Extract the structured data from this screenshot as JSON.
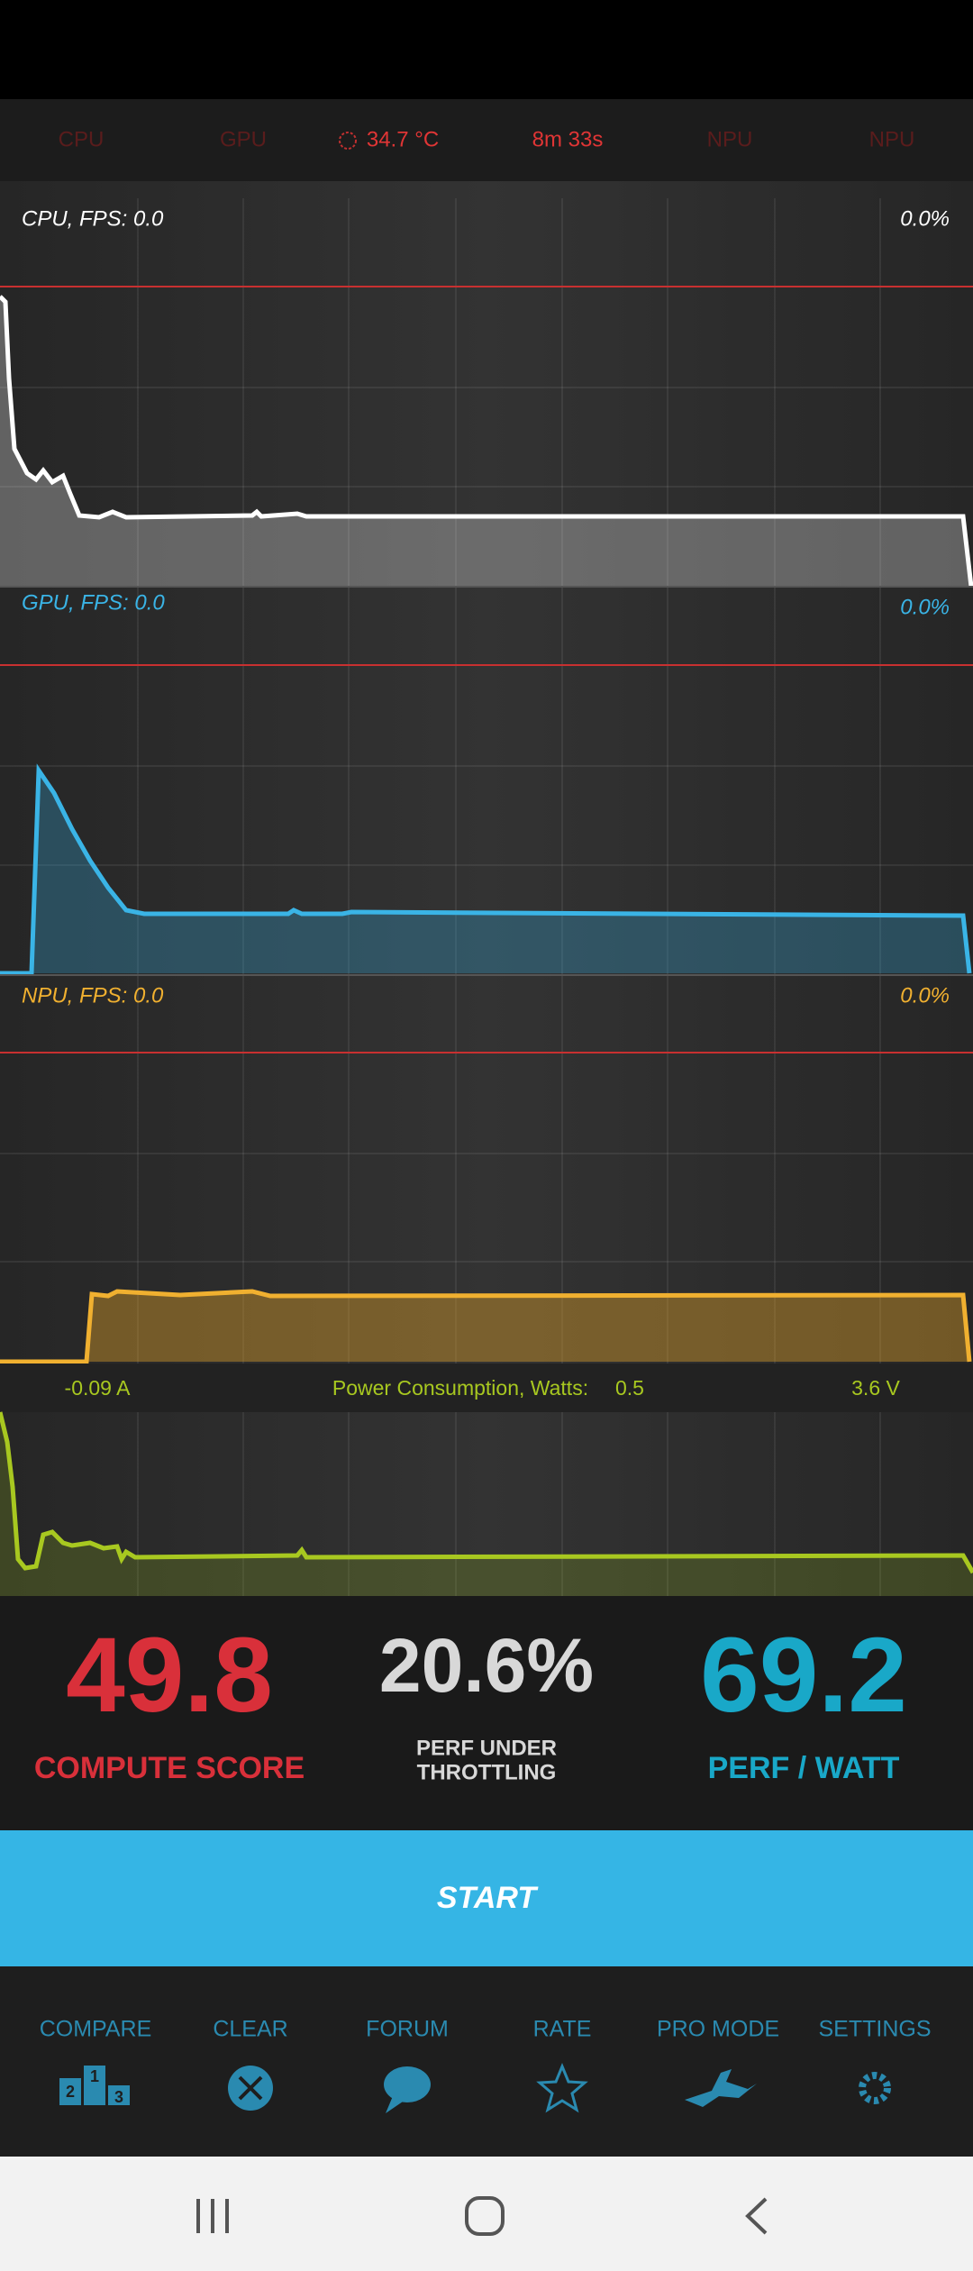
{
  "header": {
    "cpu": "CPU",
    "gpu": "GPU",
    "temperature": "34.7 °C",
    "time": "8m 33s",
    "npu_1": "NPU",
    "npu_2": "NPU"
  },
  "graphs": {
    "cpu": {
      "label": "CPU, FPS:  0.0",
      "percent": "0.0%"
    },
    "gpu": {
      "label": "GPU, FPS:  0.0",
      "percent": "0.0%"
    },
    "npu": {
      "label": "NPU, FPS:  0.0",
      "percent": "0.0%"
    },
    "power": {
      "current": "-0.09 A",
      "label": "Power Consumption, Watts:",
      "watts": "0.5",
      "voltage": "3.6 V"
    }
  },
  "scores": {
    "compute_value": "49.8",
    "compute_label": "COMPUTE SCORE",
    "throttle_value": "20.6%",
    "throttle_label_1": "PERF UNDER",
    "throttle_label_2": "THROTTLING",
    "watt_value": "69.2",
    "watt_label": "PERF / WATT"
  },
  "start_button": "START",
  "nav": {
    "items": [
      "COMPARE",
      "CLEAR",
      "FORUM",
      "RATE",
      "PRO MODE",
      "SETTINGS"
    ],
    "podium": [
      "2",
      "1",
      "3"
    ]
  }
}
